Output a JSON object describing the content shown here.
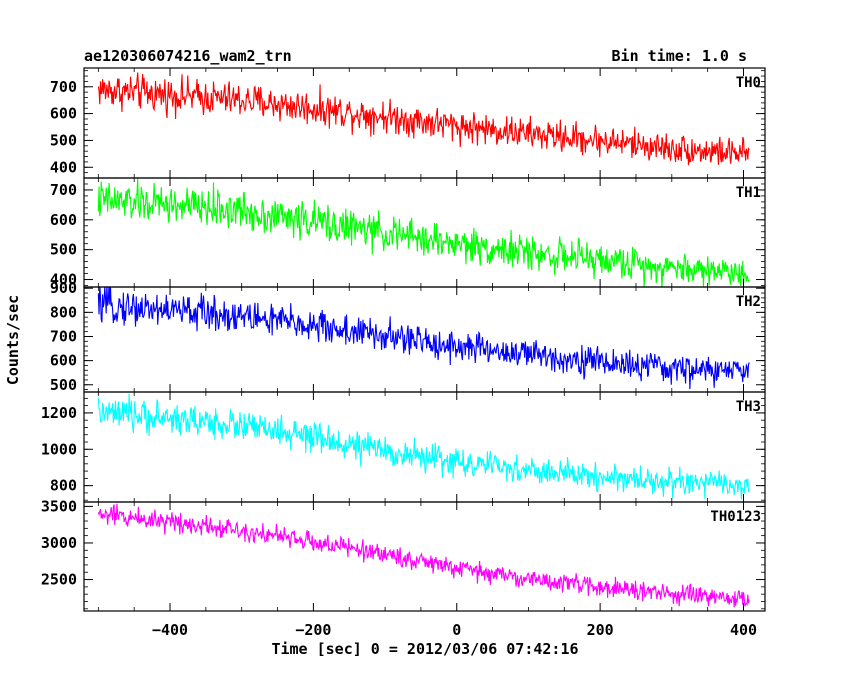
{
  "header": {
    "title": "ae120306074216_wam2_trn",
    "bin_time": "Bin time: 1.0 s"
  },
  "axes": {
    "xlabel": "Time [sec] 0 = 2012/03/06 07:42:16",
    "ylabel": "Counts/sec"
  },
  "chart_data": {
    "type": "line",
    "x_range": [
      -520,
      430
    ],
    "x_ticks": [
      -400,
      -200,
      0,
      200,
      400
    ],
    "x_tick_labels": [
      "−400",
      "−200",
      "0",
      "200",
      "400"
    ],
    "grid": false,
    "bin_time_s": 1.0,
    "panels": [
      {
        "name": "TH0",
        "color": "#ff0000",
        "ylim": [
          360,
          770
        ],
        "yticks": [
          400,
          500,
          600,
          700
        ],
        "x": [
          -500,
          -400,
          -300,
          -200,
          -100,
          0,
          100,
          200,
          300,
          400
        ],
        "values": [
          690,
          670,
          650,
          620,
          590,
          555,
          525,
          500,
          470,
          450
        ]
      },
      {
        "name": "TH1",
        "color": "#00ff00",
        "ylim": [
          375,
          740
        ],
        "yticks": [
          400,
          500,
          600,
          700
        ],
        "x": [
          -500,
          -400,
          -300,
          -200,
          -100,
          0,
          100,
          200,
          300,
          400
        ],
        "values": [
          665,
          650,
          630,
          595,
          555,
          520,
          490,
          465,
          440,
          425
        ]
      },
      {
        "name": "TH2",
        "color": "#0000ff",
        "ylim": [
          470,
          905
        ],
        "yticks": [
          500,
          600,
          700,
          800,
          900
        ],
        "x": [
          -500,
          -400,
          -300,
          -200,
          -100,
          0,
          100,
          200,
          300,
          400
        ],
        "values": [
          830,
          810,
          785,
          745,
          700,
          660,
          625,
          595,
          565,
          555
        ]
      },
      {
        "name": "TH3",
        "color": "#00ffff",
        "ylim": [
          710,
          1315
        ],
        "yticks": [
          800,
          1000,
          1200
        ],
        "x": [
          -500,
          -400,
          -300,
          -200,
          -100,
          0,
          100,
          200,
          300,
          400
        ],
        "values": [
          1200,
          1170,
          1130,
          1060,
          990,
          930,
          880,
          850,
          820,
          800
        ]
      },
      {
        "name": "TH0123",
        "color": "#ff00ff",
        "ylim": [
          2070,
          3560
        ],
        "yticks": [
          2500,
          3000,
          3500
        ],
        "x": [
          -500,
          -400,
          -300,
          -200,
          -100,
          0,
          100,
          200,
          300,
          400
        ],
        "values": [
          3390,
          3300,
          3180,
          3010,
          2850,
          2650,
          2510,
          2400,
          2300,
          2230
        ]
      }
    ]
  }
}
